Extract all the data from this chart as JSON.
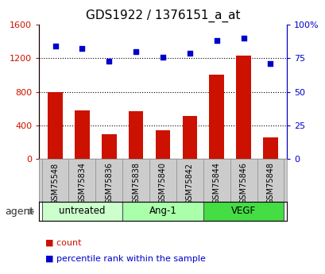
{
  "title": "GDS1922 / 1376151_a_at",
  "samples": [
    "GSM75548",
    "GSM75834",
    "GSM75836",
    "GSM75838",
    "GSM75840",
    "GSM75842",
    "GSM75844",
    "GSM75846",
    "GSM75848"
  ],
  "counts": [
    800,
    580,
    290,
    570,
    340,
    510,
    1000,
    1230,
    260
  ],
  "percentiles": [
    84,
    82,
    73,
    80,
    76,
    79,
    88,
    90,
    71
  ],
  "groups": [
    {
      "label": "untreated",
      "start": 0,
      "end": 3,
      "color": "#ccffcc"
    },
    {
      "label": "Ang-1",
      "start": 3,
      "end": 6,
      "color": "#aaffaa"
    },
    {
      "label": "VEGF",
      "start": 6,
      "end": 9,
      "color": "#44dd44"
    }
  ],
  "bar_color": "#cc1100",
  "scatter_color": "#0000cc",
  "bar_width": 0.55,
  "ylim_left": [
    0,
    1600
  ],
  "ylim_right": [
    0,
    100
  ],
  "yticks_left": [
    0,
    400,
    800,
    1200,
    1600
  ],
  "yticks_right": [
    0,
    25,
    50,
    75,
    100
  ],
  "ytick_labels_right": [
    "0",
    "25",
    "50",
    "75",
    "100%"
  ],
  "grid_yticks": [
    400,
    800,
    1200
  ],
  "tick_area_bg": "#cccccc",
  "legend_items": [
    {
      "label": "count",
      "color": "#cc1100"
    },
    {
      "label": "percentile rank within the sample",
      "color": "#0000cc"
    }
  ],
  "agent_label": "agent",
  "figsize": [
    4.1,
    3.45
  ],
  "dpi": 100
}
